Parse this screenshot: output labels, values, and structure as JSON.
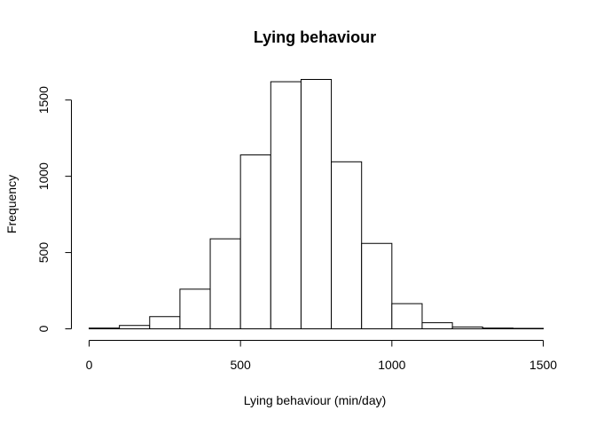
{
  "chart_data": {
    "type": "bar",
    "subtype": "histogram",
    "title": "Lying behaviour",
    "xlabel": "Lying behaviour (min/day)",
    "ylabel": "Frequency",
    "bins": [
      {
        "start": 0,
        "end": 100,
        "count": 5
      },
      {
        "start": 100,
        "end": 200,
        "count": 22
      },
      {
        "start": 200,
        "end": 300,
        "count": 80
      },
      {
        "start": 300,
        "end": 400,
        "count": 260
      },
      {
        "start": 400,
        "end": 500,
        "count": 590
      },
      {
        "start": 500,
        "end": 600,
        "count": 1140
      },
      {
        "start": 600,
        "end": 700,
        "count": 1620
      },
      {
        "start": 700,
        "end": 800,
        "count": 1635
      },
      {
        "start": 800,
        "end": 900,
        "count": 1095
      },
      {
        "start": 900,
        "end": 1000,
        "count": 560
      },
      {
        "start": 1000,
        "end": 1100,
        "count": 165
      },
      {
        "start": 1100,
        "end": 1200,
        "count": 40
      },
      {
        "start": 1200,
        "end": 1300,
        "count": 12
      },
      {
        "start": 1300,
        "end": 1400,
        "count": 5
      },
      {
        "start": 1400,
        "end": 1500,
        "count": 3
      }
    ],
    "xlim": [
      0,
      1500
    ],
    "ylim": [
      0,
      1635
    ],
    "x_ticks": [
      0,
      500,
      1000,
      1500
    ],
    "y_ticks": [
      0,
      500,
      1000,
      1500
    ],
    "grid": false,
    "colors": {
      "bar_fill": "#ffffff",
      "bar_stroke": "#000000"
    }
  }
}
